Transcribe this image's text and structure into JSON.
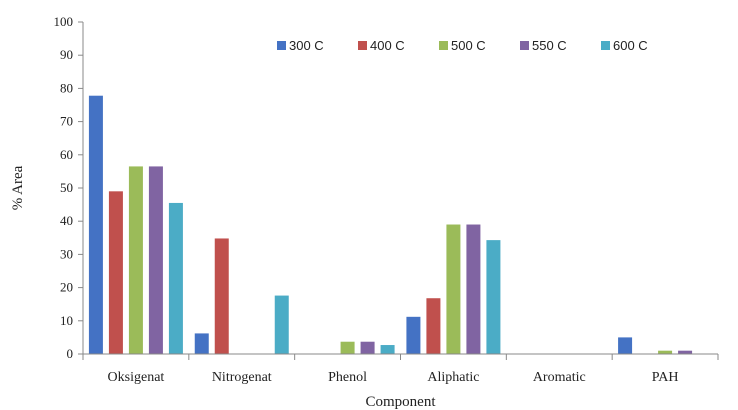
{
  "chart_data": {
    "type": "bar",
    "title": "",
    "xlabel": "Component",
    "ylabel": "% Area",
    "ylim": [
      0,
      100
    ],
    "ytick_step": 10,
    "grid": false,
    "legend_position": "top-right",
    "categories": [
      "Oksigenat",
      "Nitrogenat",
      "Phenol",
      "Aliphatic",
      "Aromatic",
      "PAH"
    ],
    "series": [
      {
        "name": "300 C",
        "color": "#4472C4",
        "values": [
          77.8,
          6.2,
          0,
          11.2,
          0,
          5
        ]
      },
      {
        "name": "400 C",
        "color": "#C0504D",
        "values": [
          49,
          34.8,
          0,
          16.8,
          0,
          0
        ]
      },
      {
        "name": "500 C",
        "color": "#9BBB59",
        "values": [
          56.5,
          0,
          3.7,
          39,
          0,
          1
        ]
      },
      {
        "name": "550 C",
        "color": "#8064A2",
        "values": [
          56.5,
          0,
          3.7,
          39,
          0,
          1
        ]
      },
      {
        "name": "600 C",
        "color": "#4BACC6",
        "values": [
          45.5,
          17.6,
          2.7,
          34.3,
          0,
          0
        ]
      }
    ]
  }
}
